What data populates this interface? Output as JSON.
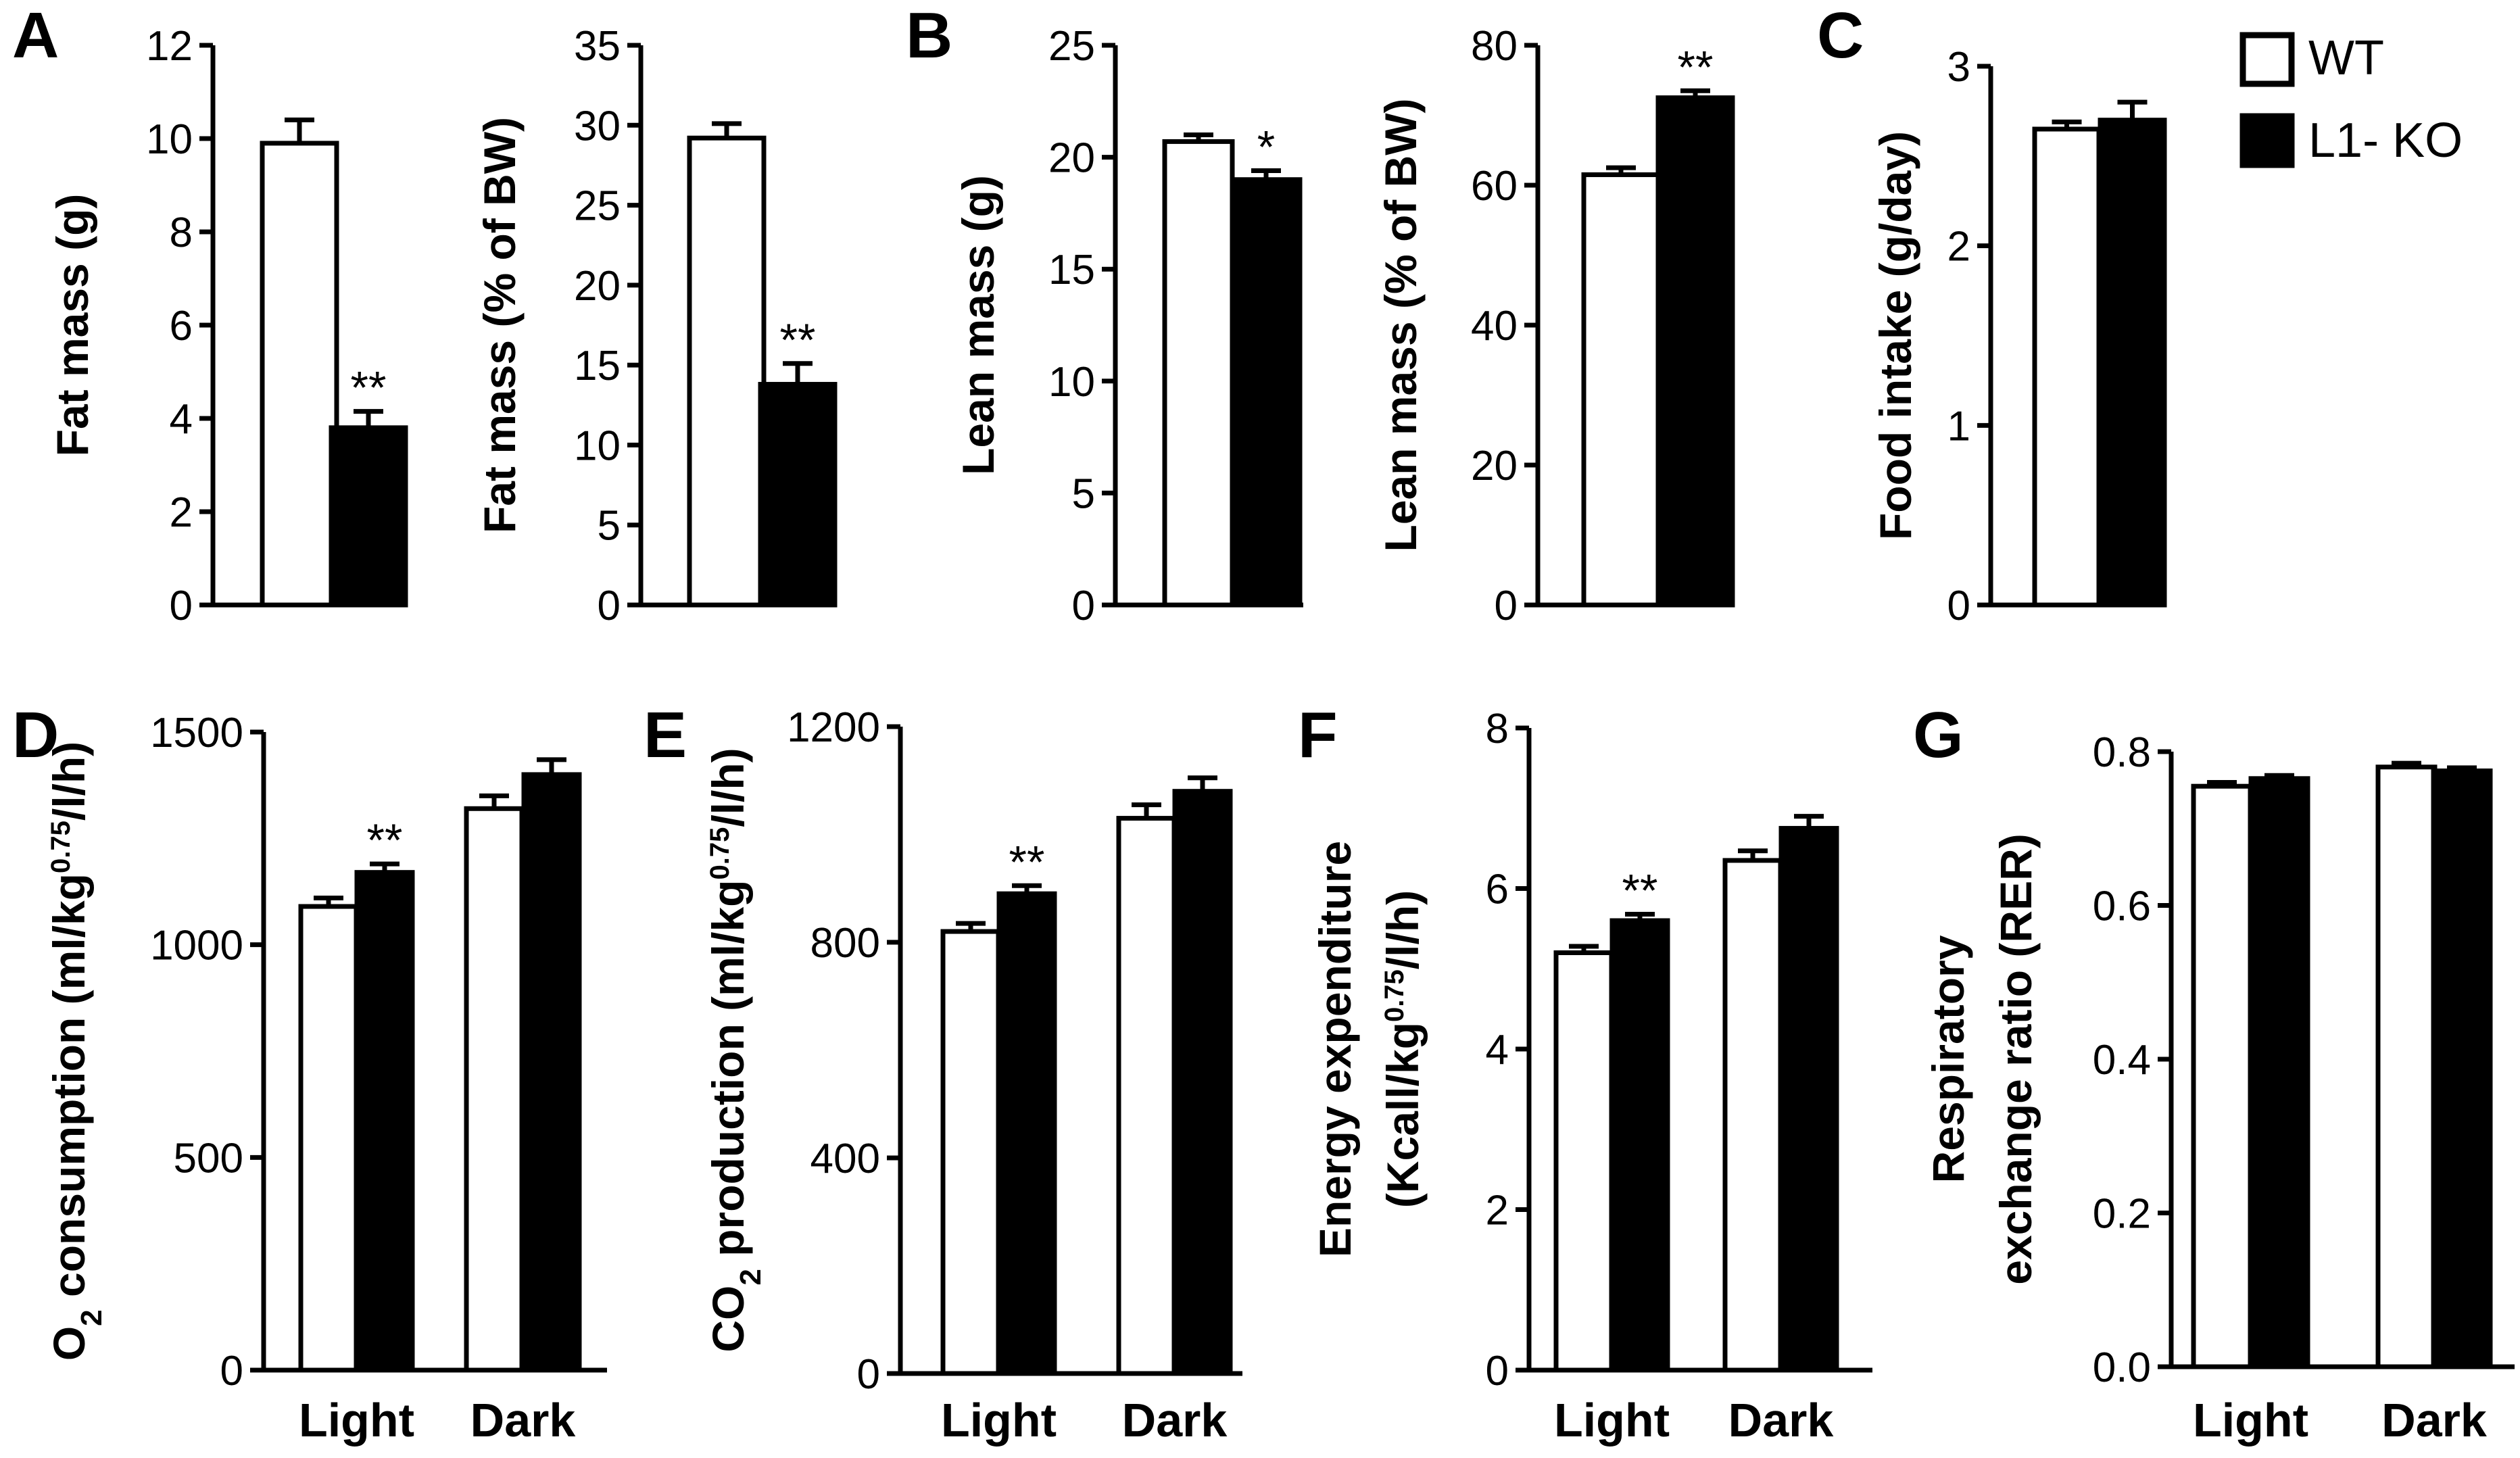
{
  "figure": {
    "legend": {
      "entries": [
        {
          "label": "WT",
          "fill": "#ffffff"
        },
        {
          "label": "L1- KO",
          "fill": "#000000"
        }
      ]
    }
  },
  "chart_data": [
    {
      "panel": "A",
      "type": "bar",
      "title": "",
      "xlabel": "",
      "ylabel": "Fat mass (g)",
      "ylim": [
        0,
        12
      ],
      "yticks": [
        "0",
        "2",
        "4",
        "6",
        "8",
        "10",
        "12"
      ],
      "grid": false,
      "categories": [
        ""
      ],
      "series": [
        {
          "name": "WT",
          "values": [
            9.9
          ],
          "errors": [
            0.5
          ]
        },
        {
          "name": "L1- KO",
          "values": [
            3.8
          ],
          "errors": [
            0.35
          ]
        }
      ],
      "annotations": [
        {
          "text": "**",
          "category": 0,
          "series": "L1- KO"
        }
      ]
    },
    {
      "panel": "",
      "type": "bar",
      "title": "",
      "xlabel": "",
      "ylabel": "Fat mass (% of BW)",
      "ylim": [
        0,
        35
      ],
      "yticks": [
        "0",
        "5",
        "10",
        "15",
        "20",
        "25",
        "30",
        "35"
      ],
      "grid": false,
      "categories": [
        ""
      ],
      "series": [
        {
          "name": "WT",
          "values": [
            29.2
          ],
          "errors": [
            0.9
          ]
        },
        {
          "name": "L1- KO",
          "values": [
            13.8
          ],
          "errors": [
            1.3
          ]
        }
      ],
      "annotations": [
        {
          "text": "**",
          "category": 0,
          "series": "L1- KO"
        }
      ]
    },
    {
      "panel": "B",
      "type": "bar",
      "title": "",
      "xlabel": "",
      "ylabel": "Lean mass (g)",
      "ylim": [
        0,
        25
      ],
      "yticks": [
        "0",
        "5",
        "10",
        "15",
        "20",
        "25"
      ],
      "grid": false,
      "categories": [
        ""
      ],
      "series": [
        {
          "name": "WT",
          "values": [
            20.7
          ],
          "errors": [
            0.3
          ]
        },
        {
          "name": "L1- KO",
          "values": [
            19.0
          ],
          "errors": [
            0.4
          ]
        }
      ],
      "annotations": [
        {
          "text": "*",
          "category": 0,
          "series": "L1- KO"
        }
      ]
    },
    {
      "panel": "",
      "type": "bar",
      "title": "",
      "xlabel": "",
      "ylabel": "Lean mass (% of BW)",
      "ylim": [
        0,
        80
      ],
      "yticks": [
        "0",
        "20",
        "40",
        "60",
        "80"
      ],
      "grid": false,
      "categories": [
        ""
      ],
      "series": [
        {
          "name": "WT",
          "values": [
            61.5
          ],
          "errors": [
            1.0
          ]
        },
        {
          "name": "L1- KO",
          "values": [
            72.5
          ],
          "errors": [
            1.0
          ]
        }
      ],
      "annotations": [
        {
          "text": "**",
          "category": 0,
          "series": "L1- KO"
        }
      ]
    },
    {
      "panel": "C",
      "type": "bar",
      "title": "",
      "xlabel": "",
      "ylabel": "Food intake (g/day)",
      "ylim": [
        0,
        3
      ],
      "yticks": [
        "0",
        "1",
        "2",
        "3"
      ],
      "grid": false,
      "categories": [
        ""
      ],
      "series": [
        {
          "name": "WT",
          "values": [
            2.65
          ],
          "errors": [
            0.04
          ]
        },
        {
          "name": "L1- KO",
          "values": [
            2.7
          ],
          "errors": [
            0.1
          ]
        }
      ],
      "annotations": []
    },
    {
      "panel": "D",
      "type": "bar",
      "title": "",
      "xlabel": "",
      "ylabel": "O2 consumption (ml/kg0.75/l/h)",
      "ylabel_parts": [
        {
          "t": "O",
          "s": "n"
        },
        {
          "t": "2",
          "s": "sub"
        },
        {
          "t": " consumption (ml/kg",
          "s": "n"
        },
        {
          "t": "0.75",
          "s": "sup"
        },
        {
          "t": "/l/h)",
          "s": "n"
        }
      ],
      "ylim": [
        0,
        1500
      ],
      "yticks": [
        "0",
        "500",
        "1000",
        "1500"
      ],
      "grid": false,
      "categories": [
        "Light",
        "Dark"
      ],
      "series": [
        {
          "name": "WT",
          "values": [
            1090,
            1320
          ],
          "errors": [
            20,
            30
          ]
        },
        {
          "name": "L1- KO",
          "values": [
            1170,
            1400
          ],
          "errors": [
            20,
            35
          ]
        }
      ],
      "annotations": [
        {
          "text": "**",
          "category": 0,
          "series": "L1- KO"
        }
      ]
    },
    {
      "panel": "E",
      "type": "bar",
      "title": "",
      "xlabel": "",
      "ylabel": "CO2 production (ml/kg0.75/l/h)",
      "ylabel_parts": [
        {
          "t": "CO",
          "s": "n"
        },
        {
          "t": "2",
          "s": "sub"
        },
        {
          "t": " production (ml/kg",
          "s": "n"
        },
        {
          "t": "0.75",
          "s": "sup"
        },
        {
          "t": "/l/h)",
          "s": "n"
        }
      ],
      "ylim": [
        0,
        1200
      ],
      "yticks": [
        "0",
        "400",
        "800",
        "1200"
      ],
      "grid": false,
      "categories": [
        "Light",
        "Dark"
      ],
      "series": [
        {
          "name": "WT",
          "values": [
            820,
            1030
          ],
          "errors": [
            15,
            25
          ]
        },
        {
          "name": "L1- KO",
          "values": [
            890,
            1080
          ],
          "errors": [
            15,
            25
          ]
        }
      ],
      "annotations": [
        {
          "text": "**",
          "category": 0,
          "series": "L1- KO"
        }
      ]
    },
    {
      "panel": "F",
      "type": "bar",
      "title": "",
      "xlabel": "",
      "ylabel": "Energy expenditure (Kcall/kg0.75/l/h)",
      "ylabel_lines": [
        [
          {
            "t": "Energy expenditure",
            "s": "n"
          }
        ],
        [
          {
            "t": "(Kcall/kg",
            "s": "n"
          },
          {
            "t": "0.75",
            "s": "sup"
          },
          {
            "t": "/l/h)",
            "s": "n"
          }
        ]
      ],
      "ylim": [
        0,
        8
      ],
      "yticks": [
        "0",
        "2",
        "4",
        "6",
        "8"
      ],
      "grid": false,
      "categories": [
        "Light",
        "Dark"
      ],
      "series": [
        {
          "name": "WT",
          "values": [
            5.2,
            6.35
          ],
          "errors": [
            0.08,
            0.12
          ]
        },
        {
          "name": "L1- KO",
          "values": [
            5.6,
            6.75
          ],
          "errors": [
            0.08,
            0.15
          ]
        }
      ],
      "annotations": [
        {
          "text": "**",
          "category": 0,
          "series": "L1- KO"
        }
      ]
    },
    {
      "panel": "G",
      "type": "bar",
      "title": "",
      "xlabel": "",
      "ylabel": "Respiratory exchange ratio (RER)",
      "ylabel_lines": [
        [
          {
            "t": "Respiratory",
            "s": "n"
          }
        ],
        [
          {
            "t": "exchange ratio (RER)",
            "s": "n"
          }
        ]
      ],
      "ylim": [
        0,
        0.8
      ],
      "yticks": [
        "0.0",
        "0.2",
        "0.4",
        "0.6",
        "0.8"
      ],
      "grid": false,
      "categories": [
        "Light",
        "Dark"
      ],
      "series": [
        {
          "name": "WT",
          "values": [
            0.755,
            0.78
          ],
          "errors": [
            0.005,
            0.005
          ]
        },
        {
          "name": "L1- KO",
          "values": [
            0.765,
            0.775
          ],
          "errors": [
            0.004,
            0.004
          ]
        }
      ],
      "annotations": []
    }
  ]
}
